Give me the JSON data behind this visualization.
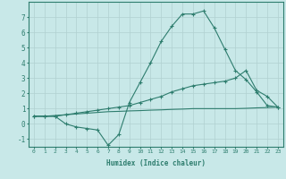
{
  "xlabel": "Humidex (Indice chaleur)",
  "ylabel": "",
  "bg_color": "#c8e8e8",
  "line_color": "#2e7d6e",
  "grid_color": "#b0d0d0",
  "x_values": [
    0,
    1,
    2,
    3,
    4,
    5,
    6,
    7,
    8,
    9,
    10,
    11,
    12,
    13,
    14,
    15,
    16,
    17,
    18,
    19,
    20,
    21,
    22,
    23
  ],
  "line1": [
    0.5,
    0.5,
    0.5,
    0.0,
    -0.2,
    -0.3,
    -0.4,
    -1.4,
    -0.7,
    1.4,
    2.7,
    4.0,
    5.4,
    6.4,
    7.2,
    7.2,
    7.4,
    6.3,
    4.9,
    3.5,
    2.9,
    2.1,
    1.2,
    1.1
  ],
  "line2": [
    0.5,
    0.5,
    0.5,
    0.6,
    0.7,
    0.8,
    0.9,
    1.0,
    1.1,
    1.2,
    1.4,
    1.6,
    1.8,
    2.1,
    2.3,
    2.5,
    2.6,
    2.7,
    2.8,
    3.0,
    3.5,
    2.2,
    1.8,
    1.1
  ],
  "line3": [
    0.5,
    0.5,
    0.55,
    0.6,
    0.65,
    0.7,
    0.75,
    0.8,
    0.82,
    0.85,
    0.87,
    0.9,
    0.92,
    0.95,
    0.97,
    1.0,
    1.0,
    1.0,
    1.0,
    1.0,
    1.02,
    1.05,
    1.07,
    1.1
  ],
  "ylim": [
    -1.5,
    8.0
  ],
  "xlim": [
    -0.5,
    23.5
  ],
  "yticks": [
    -1,
    0,
    1,
    2,
    3,
    4,
    5,
    6,
    7
  ],
  "xticks": [
    0,
    1,
    2,
    3,
    4,
    5,
    6,
    7,
    8,
    9,
    10,
    11,
    12,
    13,
    14,
    15,
    16,
    17,
    18,
    19,
    20,
    21,
    22,
    23
  ]
}
